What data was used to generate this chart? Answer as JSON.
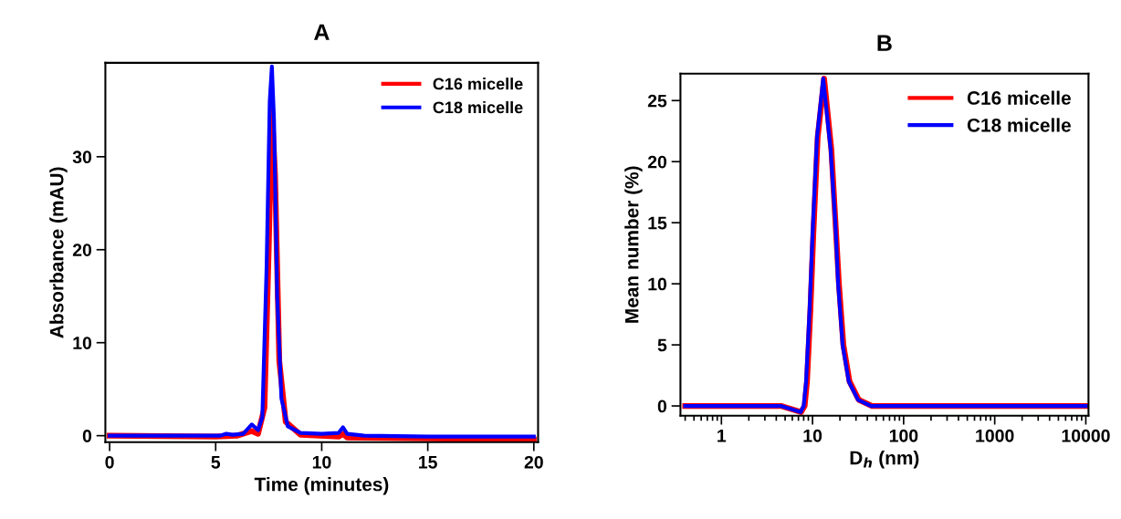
{
  "chart_data": [
    {
      "type": "line",
      "title": "A",
      "xlabel": "Time (minutes)",
      "ylabel": "Absorbance (mAU)",
      "xlim": [
        -0.2,
        20.2
      ],
      "ylim": [
        -0.7,
        40.1
      ],
      "xticks": [
        0,
        5,
        10,
        15,
        20
      ],
      "yticks": [
        0,
        10,
        20,
        30
      ],
      "grid": false,
      "legend": "top right",
      "marker": "none",
      "line_style": "solid",
      "series": [
        {
          "name": "C16 micelle",
          "color": "#ff0000",
          "x": [
            0,
            5,
            6,
            6.7,
            7.0,
            7.3,
            7.5,
            7.65,
            7.8,
            8.0,
            8.3,
            9,
            10.8,
            11.0,
            11.2,
            15,
            20
          ],
          "values": [
            0,
            -0.1,
            0,
            0.5,
            0.2,
            3,
            20,
            35,
            28,
            8,
            1.5,
            0.1,
            -0.1,
            0.2,
            -0.2,
            -0.3,
            -0.4
          ]
        },
        {
          "name": "C18 micelle",
          "color": "#0000ff",
          "x": [
            0,
            4,
            5.2,
            5.5,
            5.8,
            6.3,
            6.7,
            7.0,
            7.2,
            7.4,
            7.55,
            7.65,
            7.75,
            7.9,
            8.1,
            8.4,
            9,
            10,
            10.8,
            11.0,
            11.2,
            12,
            15,
            20
          ],
          "values": [
            0,
            0,
            0,
            0.2,
            0.1,
            0.2,
            1.2,
            0.6,
            2,
            18,
            36,
            39.7,
            34,
            15,
            4,
            1,
            0.3,
            0.2,
            0.3,
            0.9,
            0.2,
            0,
            -0.1,
            -0.1
          ]
        }
      ]
    },
    {
      "type": "line",
      "title": "B",
      "xlabel": "D$_{h}$ (nm)",
      "ylabel": "Mean number (%)",
      "log": "x",
      "xlim": [
        0.355,
        10700
      ],
      "ylim": [
        -0.8,
        27.2
      ],
      "xticks": [
        1,
        10,
        100,
        1000,
        10000
      ],
      "yticks": [
        0,
        5,
        10,
        15,
        20,
        25
      ],
      "grid": false,
      "legend": "top right",
      "marker": "none",
      "line_style": "solid",
      "series": [
        {
          "name": "C16 micelle",
          "color": "#ff0000",
          "x": [
            0.4,
            4.5,
            7.5,
            8.2,
            8.7,
            9.5,
            10.2,
            11.4,
            13.4,
            16.1,
            18.2,
            19.5,
            21.8,
            25.5,
            32.2,
            45,
            10000
          ],
          "values": [
            0,
            0,
            -0.5,
            0,
            2,
            8,
            14,
            22,
            26.8,
            21,
            14,
            10,
            5,
            2,
            0.5,
            0,
            0
          ]
        },
        {
          "name": "C18 micelle",
          "color": "#0000ff",
          "x": [
            0.4,
            4.5,
            7.4,
            8,
            8.5,
            9.3,
            10,
            11.2,
            13.1,
            15.8,
            17.8,
            19.1,
            21.4,
            25,
            31.6,
            44,
            10000
          ],
          "values": [
            0,
            0,
            -0.5,
            0,
            2,
            8,
            14,
            22,
            26.8,
            21,
            15,
            10,
            5,
            2,
            0.5,
            0,
            0
          ]
        }
      ]
    }
  ]
}
